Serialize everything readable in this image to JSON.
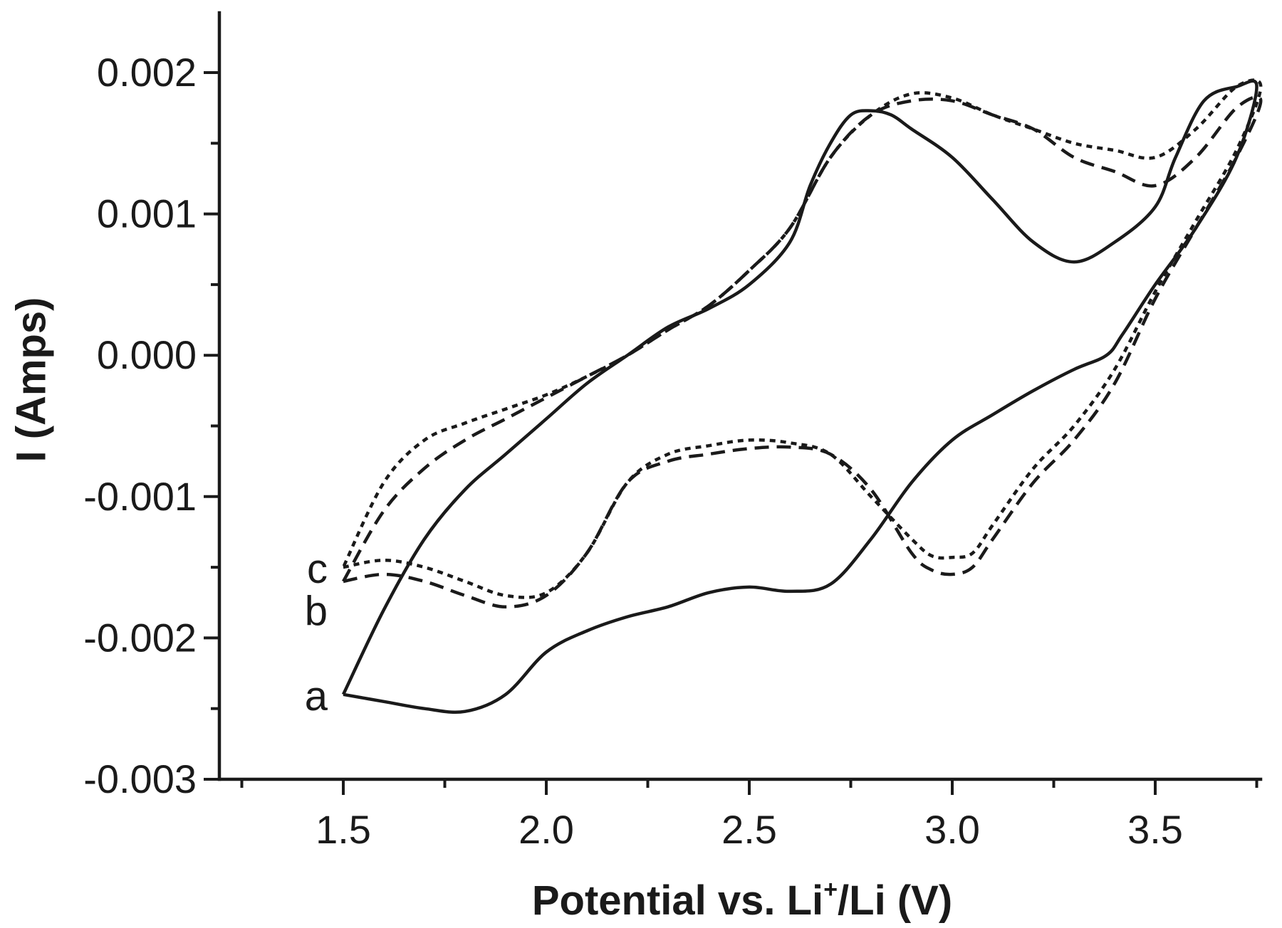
{
  "chart_data": {
    "type": "line",
    "title": "",
    "xlabel": "Potential vs. Li",
    "xlabel_superscript": "+",
    "xlabel_suffix": "/Li (V)",
    "ylabel": "I (Amps)",
    "xlim": [
      1.2,
      3.8
    ],
    "ylim": [
      -0.003,
      0.0025
    ],
    "x_ticks": [
      1.5,
      2.0,
      2.5,
      3.0,
      3.5
    ],
    "x_tick_labels": [
      "1.5",
      "2.0",
      "2.5",
      "3.0",
      "3.5"
    ],
    "y_ticks": [
      -0.003,
      -0.002,
      -0.001,
      0.0,
      0.001,
      0.002
    ],
    "y_tick_labels": [
      "-0.003",
      "-0.002",
      "-0.001",
      "0.000",
      "0.001",
      "0.002"
    ],
    "grid": false,
    "legend": "none",
    "series": [
      {
        "label": "a",
        "style": "solid",
        "label_anchor": [
          1.5,
          -0.0024
        ],
        "points": [
          [
            1.5,
            -0.0024
          ],
          [
            1.6,
            -0.00245
          ],
          [
            1.7,
            -0.0025
          ],
          [
            1.8,
            -0.00252
          ],
          [
            1.9,
            -0.0024
          ],
          [
            2.0,
            -0.0021
          ],
          [
            2.1,
            -0.00195
          ],
          [
            2.2,
            -0.00185
          ],
          [
            2.3,
            -0.00178
          ],
          [
            2.4,
            -0.00168
          ],
          [
            2.5,
            -0.00164
          ],
          [
            2.6,
            -0.00167
          ],
          [
            2.7,
            -0.00162
          ],
          [
            2.8,
            -0.0013
          ],
          [
            2.9,
            -0.0009
          ],
          [
            3.0,
            -0.0006
          ],
          [
            3.1,
            -0.00042
          ],
          [
            3.2,
            -0.00025
          ],
          [
            3.3,
            -0.0001
          ],
          [
            3.38,
            0.0
          ],
          [
            3.42,
            0.00015
          ],
          [
            3.5,
            0.0005
          ],
          [
            3.6,
            0.0009
          ],
          [
            3.7,
            0.0014
          ],
          [
            3.75,
            0.0019
          ],
          [
            3.7,
            0.0019
          ],
          [
            3.62,
            0.0018
          ],
          [
            3.55,
            0.0014
          ],
          [
            3.5,
            0.00105
          ],
          [
            3.4,
            0.0008
          ],
          [
            3.3,
            0.00066
          ],
          [
            3.2,
            0.0008
          ],
          [
            3.1,
            0.0011
          ],
          [
            3.0,
            0.0014
          ],
          [
            2.9,
            0.0016
          ],
          [
            2.85,
            0.0017
          ],
          [
            2.8,
            0.00173
          ],
          [
            2.75,
            0.0017
          ],
          [
            2.7,
            0.0015
          ],
          [
            2.65,
            0.0012
          ],
          [
            2.6,
            0.0008
          ],
          [
            2.5,
            0.0005
          ],
          [
            2.4,
            0.00033
          ],
          [
            2.3,
            0.0002
          ],
          [
            2.2,
            0.0
          ],
          [
            2.1,
            -0.0002
          ],
          [
            2.0,
            -0.00045
          ],
          [
            1.9,
            -0.0007
          ],
          [
            1.8,
            -0.00095
          ],
          [
            1.7,
            -0.0013
          ],
          [
            1.6,
            -0.0018
          ],
          [
            1.5,
            -0.0024
          ]
        ]
      },
      {
        "label": "b",
        "style": "dashed",
        "label_anchor": [
          1.5,
          -0.0016
        ],
        "points": [
          [
            1.5,
            -0.0016
          ],
          [
            1.6,
            -0.00155
          ],
          [
            1.7,
            -0.0016
          ],
          [
            1.8,
            -0.0017
          ],
          [
            1.9,
            -0.00178
          ],
          [
            2.0,
            -0.0017
          ],
          [
            2.1,
            -0.0014
          ],
          [
            2.2,
            -0.0009
          ],
          [
            2.3,
            -0.00075
          ],
          [
            2.4,
            -0.0007
          ],
          [
            2.5,
            -0.00066
          ],
          [
            2.6,
            -0.00065
          ],
          [
            2.7,
            -0.0007
          ],
          [
            2.8,
            -0.00095
          ],
          [
            2.9,
            -0.0014
          ],
          [
            2.95,
            -0.00152
          ],
          [
            3.0,
            -0.00155
          ],
          [
            3.05,
            -0.0015
          ],
          [
            3.1,
            -0.0013
          ],
          [
            3.2,
            -0.0009
          ],
          [
            3.3,
            -0.0006
          ],
          [
            3.4,
            -0.0002
          ],
          [
            3.5,
            0.0004
          ],
          [
            3.6,
            0.0009
          ],
          [
            3.7,
            0.0014
          ],
          [
            3.76,
            0.0018
          ],
          [
            3.7,
            0.00175
          ],
          [
            3.6,
            0.0014
          ],
          [
            3.5,
            0.0012
          ],
          [
            3.4,
            0.0013
          ],
          [
            3.3,
            0.0014
          ],
          [
            3.2,
            0.0016
          ],
          [
            3.1,
            0.0017
          ],
          [
            3.0,
            0.0018
          ],
          [
            2.9,
            0.0018
          ],
          [
            2.8,
            0.0017
          ],
          [
            2.7,
            0.0014
          ],
          [
            2.6,
            0.0009
          ],
          [
            2.5,
            0.0006
          ],
          [
            2.4,
            0.00035
          ],
          [
            2.3,
            0.00018
          ],
          [
            2.2,
            0.0
          ],
          [
            2.1,
            -0.00015
          ],
          [
            2.0,
            -0.0003
          ],
          [
            1.9,
            -0.00045
          ],
          [
            1.8,
            -0.0006
          ],
          [
            1.7,
            -0.0008
          ],
          [
            1.6,
            -0.0011
          ],
          [
            1.5,
            -0.0016
          ]
        ]
      },
      {
        "label": "c",
        "style": "dotted",
        "label_anchor": [
          1.5,
          -0.0015
        ],
        "points": [
          [
            1.5,
            -0.0015
          ],
          [
            1.6,
            -0.00145
          ],
          [
            1.7,
            -0.0015
          ],
          [
            1.8,
            -0.0016
          ],
          [
            1.9,
            -0.0017
          ],
          [
            2.0,
            -0.00168
          ],
          [
            2.1,
            -0.0014
          ],
          [
            2.2,
            -0.0009
          ],
          [
            2.3,
            -0.0007
          ],
          [
            2.4,
            -0.00064
          ],
          [
            2.5,
            -0.0006
          ],
          [
            2.6,
            -0.00062
          ],
          [
            2.7,
            -0.0007
          ],
          [
            2.8,
            -0.001
          ],
          [
            2.9,
            -0.0013
          ],
          [
            2.95,
            -0.00142
          ],
          [
            3.0,
            -0.00143
          ],
          [
            3.05,
            -0.0014
          ],
          [
            3.1,
            -0.0012
          ],
          [
            3.2,
            -0.0008
          ],
          [
            3.3,
            -0.0005
          ],
          [
            3.4,
            -0.0001
          ],
          [
            3.5,
            0.00045
          ],
          [
            3.6,
            0.00095
          ],
          [
            3.7,
            0.00145
          ],
          [
            3.76,
            0.0019
          ],
          [
            3.7,
            0.0019
          ],
          [
            3.6,
            0.0016
          ],
          [
            3.5,
            0.0014
          ],
          [
            3.4,
            0.00145
          ],
          [
            3.3,
            0.0015
          ],
          [
            3.2,
            0.0016
          ],
          [
            3.1,
            0.0017
          ],
          [
            3.0,
            0.00182
          ],
          [
            2.9,
            0.00185
          ],
          [
            2.8,
            0.0017
          ],
          [
            2.7,
            0.0014
          ],
          [
            2.6,
            0.0009
          ],
          [
            2.5,
            0.0006
          ],
          [
            2.4,
            0.00035
          ],
          [
            2.3,
            0.00018
          ],
          [
            2.2,
            0.0
          ],
          [
            2.1,
            -0.00015
          ],
          [
            2.0,
            -0.00028
          ],
          [
            1.9,
            -0.00038
          ],
          [
            1.8,
            -0.00048
          ],
          [
            1.7,
            -0.0006
          ],
          [
            1.6,
            -0.0009
          ],
          [
            1.5,
            -0.0015
          ]
        ]
      }
    ]
  }
}
